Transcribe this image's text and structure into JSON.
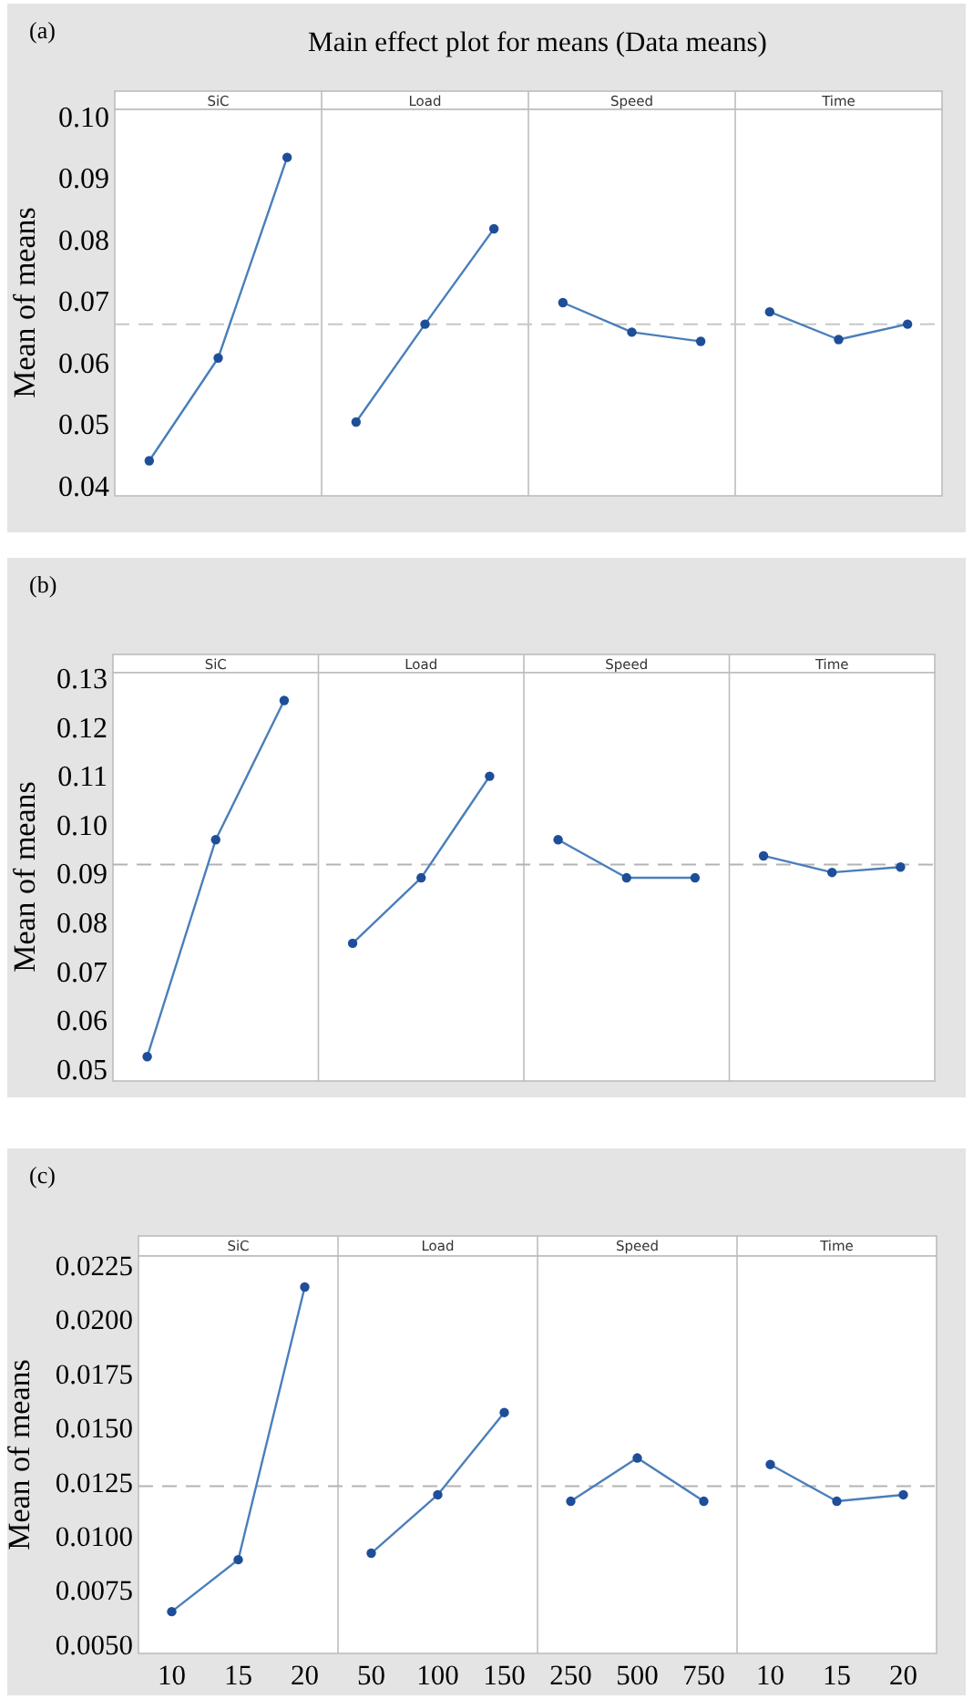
{
  "chart_data": [
    {
      "type": "line",
      "title": "Main effect plot for means (Data means)",
      "ylabel": "Mean of means",
      "annotations": [
        "(a)",
        "SiC",
        "Load",
        "Speed",
        "Time"
      ],
      "categories": [
        null,
        null,
        null,
        null,
        null,
        null,
        null,
        null,
        null,
        null,
        null,
        null
      ],
      "series": [
        {
          "color": "#4a7ebb",
          "values": [
            0.044,
            0.0607,
            0.0933,
            null,
            null,
            null,
            null,
            null,
            null,
            null,
            null,
            null
          ]
        },
        {
          "color": "#4a7ebb",
          "values": [
            null,
            null,
            null,
            0.0503,
            0.0662,
            0.0817,
            null,
            null,
            null,
            null,
            null,
            null
          ]
        },
        {
          "color": "#4a7ebb",
          "values": [
            null,
            null,
            null,
            null,
            null,
            null,
            0.0697,
            0.0649,
            0.0634,
            null,
            null,
            null
          ]
        },
        {
          "color": "#4a7ebb",
          "values": [
            null,
            null,
            null,
            null,
            null,
            null,
            null,
            null,
            null,
            0.0682,
            0.0637,
            0.0662
          ]
        }
      ],
      "ylim": [
        0.0383,
        0.1011
      ],
      "yticks": [
        0.04,
        0.05,
        0.06,
        0.07,
        0.08,
        0.09,
        {
          "value": 0.1,
          "label": "0.10"
        }
      ],
      "ref_lines": [
        {
          "axis": "y",
          "value": 0.0662,
          "color": "#c8c8c8",
          "line_style": "dashed"
        }
      ],
      "marker": "circle",
      "tick_labels": "y"
    },
    {
      "type": "line",
      "ylabel": "Mean of means",
      "annotations": [
        "(b)",
        "SiC",
        "Load",
        "Speed",
        "Time"
      ],
      "categories": [
        null,
        null,
        null,
        null,
        null,
        null,
        null,
        null,
        null,
        null,
        null,
        null
      ],
      "series": [
        {
          "color": "#4a7ebb",
          "values": [
            0.0525,
            0.0969,
            0.1254,
            null,
            null,
            null,
            null,
            null,
            null,
            null,
            null,
            null
          ]
        },
        {
          "color": "#4a7ebb",
          "values": [
            null,
            null,
            null,
            0.0757,
            0.0891,
            0.1099,
            null,
            null,
            null,
            null,
            null,
            null
          ]
        },
        {
          "color": "#4a7ebb",
          "values": [
            null,
            null,
            null,
            null,
            null,
            null,
            0.0969,
            0.0891,
            0.0891,
            null,
            null,
            null
          ]
        },
        {
          "color": "#4a7ebb",
          "values": [
            null,
            null,
            null,
            null,
            null,
            null,
            null,
            null,
            null,
            0.0936,
            0.0902,
            0.0913
          ]
        }
      ],
      "ylim": [
        0.0475,
        0.1311
      ],
      "yticks": [
        0.05,
        0.06,
        0.07,
        0.08,
        0.09,
        {
          "value": 0.1,
          "label": "0.10"
        },
        0.11,
        0.12,
        0.13
      ],
      "ref_lines": [
        {
          "axis": "y",
          "value": 0.0918,
          "color": "#b4b4b4",
          "line_style": "dashed"
        }
      ],
      "marker": "circle",
      "tick_labels": "y"
    },
    {
      "type": "line",
      "ylabel": "Mean of means",
      "annotations": [
        "(c)",
        "SiC",
        "Load",
        "Speed",
        "Time"
      ],
      "categories": [
        "10",
        "15",
        "20",
        "50",
        "100",
        "150",
        "250",
        "500",
        "750",
        "10",
        "15",
        "20"
      ],
      "series": [
        {
          "color": "#4a7ebb",
          "values": [
            0.0065,
            0.0089,
            0.0215,
            null,
            null,
            null,
            null,
            null,
            null,
            null,
            null,
            null
          ]
        },
        {
          "color": "#4a7ebb",
          "values": [
            null,
            null,
            null,
            0.0092,
            0.0119,
            0.0157,
            null,
            null,
            null,
            null,
            null,
            null
          ]
        },
        {
          "color": "#4a7ebb",
          "values": [
            null,
            null,
            null,
            null,
            null,
            null,
            0.0116,
            0.0136,
            0.0116,
            null,
            null,
            null
          ]
        },
        {
          "color": "#4a7ebb",
          "values": [
            null,
            null,
            null,
            null,
            null,
            null,
            null,
            null,
            null,
            0.0133,
            0.0116,
            0.0119
          ]
        }
      ],
      "ylim": [
        0.00457,
        0.02293
      ],
      "yticks": [
        {
          "value": 0.005,
          "label": "0.0050"
        },
        {
          "value": 0.0075,
          "label": "0.0075"
        },
        {
          "value": 0.01,
          "label": "0.0100"
        },
        {
          "value": 0.0125,
          "label": "0.0125"
        },
        {
          "value": 0.015,
          "label": "0.0150"
        },
        {
          "value": 0.0175,
          "label": "0.0175"
        },
        {
          "value": 0.02,
          "label": "0.0200"
        },
        {
          "value": 0.0225,
          "label": "0.0225"
        }
      ],
      "ref_lines": [
        {
          "axis": "y",
          "value": 0.0123,
          "color": "#b4b4b4",
          "line_style": "dashed"
        }
      ],
      "marker": "circle"
    }
  ]
}
